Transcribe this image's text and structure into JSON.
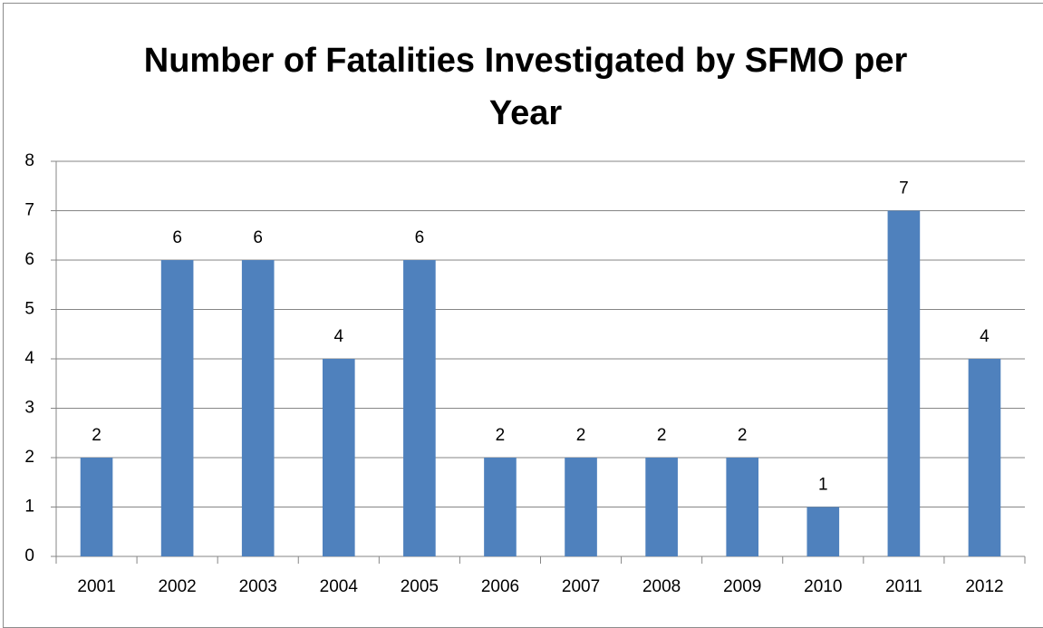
{
  "chart_data": {
    "type": "bar",
    "title": "Number of Fatalities Investigated by SFMO per Year",
    "categories": [
      "2001",
      "2002",
      "2003",
      "2004",
      "2005",
      "2006",
      "2007",
      "2008",
      "2009",
      "2010",
      "2011",
      "2012"
    ],
    "values": [
      2,
      6,
      6,
      4,
      6,
      2,
      2,
      2,
      2,
      1,
      7,
      4
    ],
    "color": "#4f81bd",
    "ylim": [
      0,
      8
    ],
    "yticks": [
      0,
      1,
      2,
      3,
      4,
      5,
      6,
      7,
      8
    ],
    "grid": true,
    "data_labels": true
  }
}
